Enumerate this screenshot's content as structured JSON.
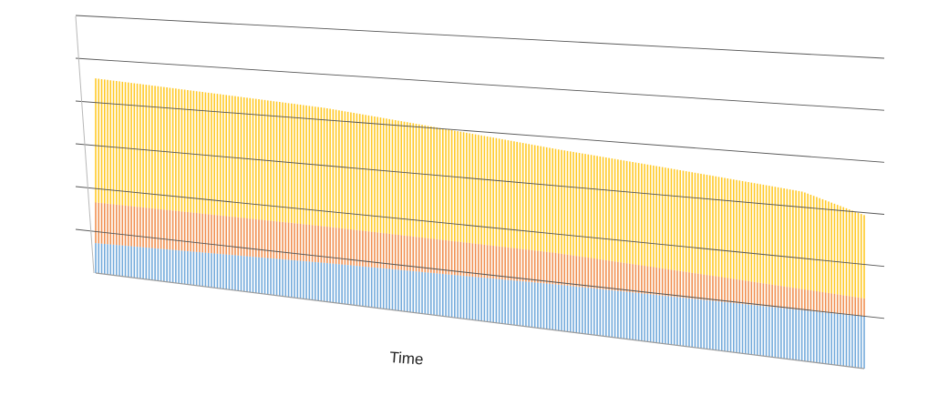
{
  "chart_data": {
    "type": "bar",
    "stacked": true,
    "title": "",
    "xlabel": "Time",
    "ylabel": "",
    "ylim": [
      0,
      6
    ],
    "grid": true,
    "legend": "none",
    "bar_count": 260,
    "series": [
      {
        "color": "#5b9bd5",
        "values_at": [
          {
            "t": 0,
            "value": 0.7
          },
          {
            "t": 0.3,
            "value": 0.85
          },
          {
            "t": 0.6,
            "value": 0.95
          },
          {
            "t": 1.0,
            "value": 1.0
          }
        ]
      },
      {
        "color": "#ed7d31",
        "values_at": [
          {
            "t": 0,
            "value": 0.95
          },
          {
            "t": 0.3,
            "value": 0.8
          },
          {
            "t": 0.6,
            "value": 0.65
          },
          {
            "t": 1.0,
            "value": 0.35
          }
        ]
      },
      {
        "color": "#ffc000",
        "values_at": [
          {
            "t": 0,
            "value": 2.9
          },
          {
            "t": 0.3,
            "value": 2.6
          },
          {
            "t": 0.6,
            "value": 2.15
          },
          {
            "t": 0.92,
            "value": 1.9
          },
          {
            "t": 1.0,
            "value": 1.6
          }
        ]
      }
    ]
  }
}
